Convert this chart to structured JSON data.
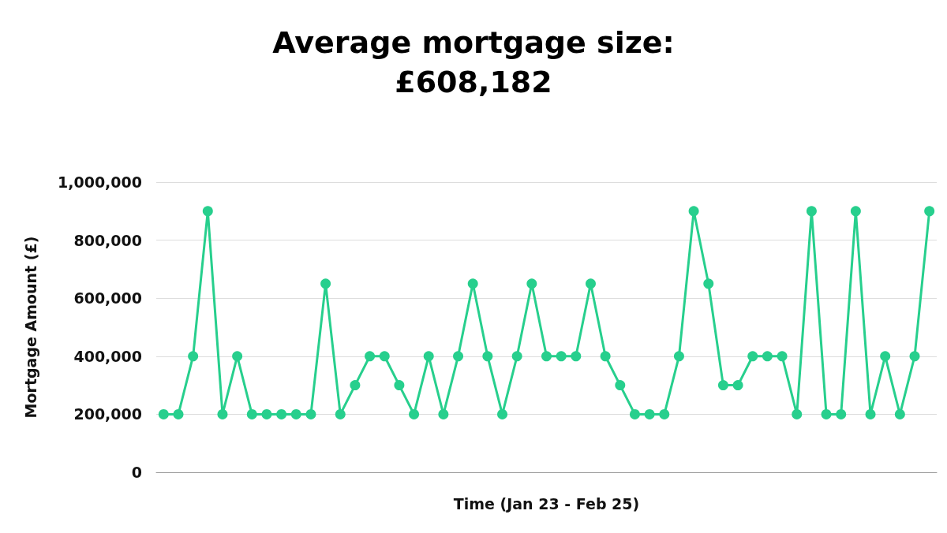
{
  "chart_data": {
    "type": "line",
    "title": "Average mortgage size:",
    "subtitle": "£608,182",
    "xlabel": "Time (Jan 23 - Feb 25)",
    "ylabel": "Mortgage Amount (£)",
    "categories": [
      null,
      null,
      null,
      null,
      null,
      null,
      null,
      null,
      null,
      null,
      null,
      null,
      null,
      null,
      null,
      null,
      null,
      null,
      null,
      null,
      null,
      null,
      null,
      null,
      null,
      null,
      null,
      null,
      null,
      null,
      null,
      null,
      null,
      null,
      null,
      null,
      null,
      null,
      null,
      null,
      null,
      null,
      null,
      null,
      null,
      null,
      null,
      null,
      null,
      null,
      null,
      null,
      null
    ],
    "series": [
      {
        "color": "#27cf8d",
        "values": [
          200000,
          200000,
          400000,
          900000,
          200000,
          400000,
          200000,
          200000,
          200000,
          200000,
          200000,
          650000,
          200000,
          300000,
          400000,
          400000,
          300000,
          200000,
          400000,
          200000,
          400000,
          650000,
          400000,
          200000,
          400000,
          650000,
          400000,
          400000,
          400000,
          650000,
          400000,
          300000,
          200000,
          200000,
          200000,
          400000,
          900000,
          650000,
          300000,
          300000,
          400000,
          400000,
          400000,
          200000,
          900000,
          200000,
          200000,
          900000,
          200000,
          400000,
          200000,
          400000,
          900000
        ]
      }
    ],
    "ylim": [
      0,
      1000000
    ],
    "yticks": [
      0,
      {
        "value": 200000,
        "label": "200,000"
      },
      {
        "value": 400000,
        "label": "400,000"
      },
      {
        "value": 600000,
        "label": "600,000"
      },
      {
        "value": 800000,
        "label": "800,000"
      },
      {
        "value": 1000000,
        "label": "1,000,000"
      }
    ],
    "grid": "y",
    "marker": "circle",
    "line_style": "solid"
  }
}
